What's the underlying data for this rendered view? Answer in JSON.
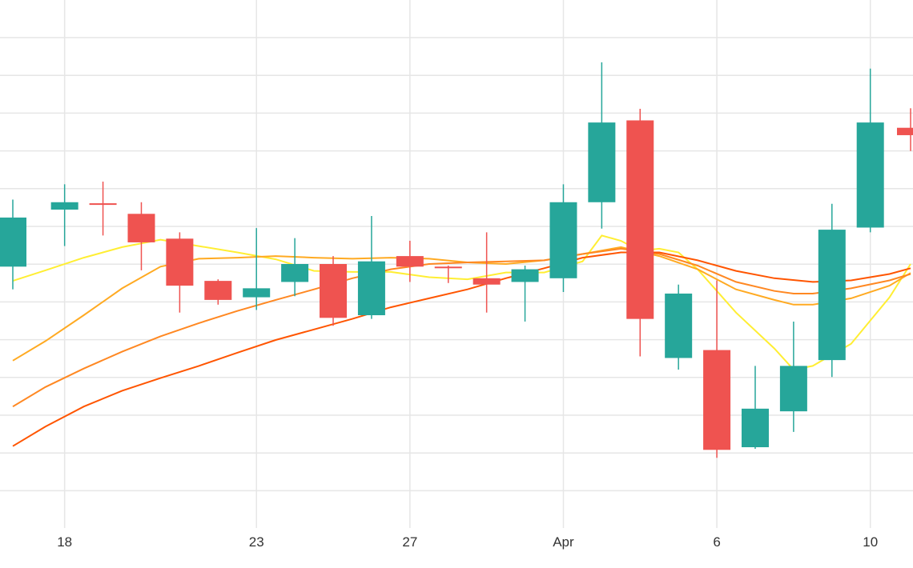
{
  "chart_data": {
    "type": "candlestick",
    "title": "",
    "xlabel": "",
    "ylabel": "",
    "ylim": [
      0,
      100
    ],
    "grid": true,
    "legend": "none",
    "x_ticks": [
      {
        "label": "18",
        "day": 18
      },
      {
        "label": "23",
        "day": 23
      },
      {
        "label": "27",
        "day": 27
      },
      {
        "label": "Apr",
        "day": 31
      },
      {
        "label": "6",
        "day": 35
      },
      {
        "label": "10",
        "day": 39
      }
    ],
    "x_range": [
      16.65,
      40.05
    ],
    "up_color": "#26a69a",
    "down_color": "#ef5350",
    "candles": [
      {
        "day": 16.65,
        "open": 49.5,
        "close": 58.8,
        "high": 62.2,
        "low": 45.2
      },
      {
        "day": 18,
        "open": 60.3,
        "close": 61.7,
        "high": 65.1,
        "low": 53.4
      },
      {
        "day": 19,
        "open": 61.5,
        "close": 61.3,
        "high": 65.6,
        "low": 55.4
      },
      {
        "day": 20,
        "open": 59.5,
        "close": 54.1,
        "high": 61.7,
        "low": 48.8
      },
      {
        "day": 21,
        "open": 54.8,
        "close": 45.9,
        "high": 56.0,
        "low": 40.8
      },
      {
        "day": 22,
        "open": 46.8,
        "close": 43.2,
        "high": 47.1,
        "low": 42.3
      },
      {
        "day": 23,
        "open": 43.7,
        "close": 45.4,
        "high": 56.8,
        "low": 41.3
      },
      {
        "day": 24,
        "open": 46.6,
        "close": 50.0,
        "high": 54.9,
        "low": 43.9
      },
      {
        "day": 25,
        "open": 50.0,
        "close": 39.8,
        "high": 51.5,
        "low": 38.3
      },
      {
        "day": 26,
        "open": 40.3,
        "close": 50.5,
        "high": 59.1,
        "low": 39.6
      },
      {
        "day": 27,
        "open": 51.5,
        "close": 49.5,
        "high": 54.4,
        "low": 46.6
      },
      {
        "day": 28,
        "open": 49.5,
        "close": 49.2,
        "high": 49.7,
        "low": 46.4
      },
      {
        "day": 29,
        "open": 47.3,
        "close": 46.1,
        "high": 56.0,
        "low": 40.8
      },
      {
        "day": 30,
        "open": 46.6,
        "close": 49.0,
        "high": 49.7,
        "low": 39.1
      },
      {
        "day": 31,
        "open": 47.3,
        "close": 61.7,
        "high": 65.1,
        "low": 44.7
      },
      {
        "day": 32,
        "open": 61.7,
        "close": 76.8,
        "high": 88.2,
        "low": 56.7
      },
      {
        "day": 33,
        "open": 77.2,
        "close": 39.6,
        "high": 79.4,
        "low": 32.5
      },
      {
        "day": 34,
        "open": 32.2,
        "close": 44.4,
        "high": 46.1,
        "low": 30.0
      },
      {
        "day": 35,
        "open": 33.7,
        "close": 14.8,
        "high": 46.9,
        "low": 13.3
      },
      {
        "day": 36,
        "open": 15.3,
        "close": 22.6,
        "high": 30.7,
        "low": 15.0
      },
      {
        "day": 37,
        "open": 22.1,
        "close": 30.7,
        "high": 39.1,
        "low": 18.2
      },
      {
        "day": 38,
        "open": 31.8,
        "close": 56.5,
        "high": 61.4,
        "low": 28.6
      },
      {
        "day": 39,
        "open": 56.9,
        "close": 76.8,
        "high": 87.0,
        "low": 56.0
      },
      {
        "day": 40.05,
        "open": 75.8,
        "close": 74.4,
        "high": 79.5,
        "low": 71.4
      }
    ],
    "series": [
      {
        "color": "#ffee33",
        "type": "line",
        "points": [
          [
            16.65,
            46.8
          ],
          [
            17.5,
            48.8
          ],
          [
            18.5,
            51.2
          ],
          [
            19.5,
            53.2
          ],
          [
            20.5,
            54.6
          ],
          [
            21.5,
            53.4
          ],
          [
            22.5,
            52.2
          ],
          [
            23.5,
            50.9
          ],
          [
            24.5,
            48.7
          ],
          [
            25.5,
            48.5
          ],
          [
            26.5,
            48.5
          ],
          [
            27.5,
            47.5
          ],
          [
            28.5,
            47.1
          ],
          [
            29.5,
            48.4
          ],
          [
            30.5,
            48.4
          ],
          [
            31.5,
            50.5
          ],
          [
            32,
            55.4
          ],
          [
            32.5,
            54.4
          ],
          [
            33,
            52.5
          ],
          [
            33.5,
            52.9
          ],
          [
            34,
            52.2
          ],
          [
            34.5,
            49.0
          ],
          [
            35.5,
            40.8
          ],
          [
            36.5,
            34.0
          ],
          [
            37,
            30.0
          ],
          [
            37.5,
            30.7
          ],
          [
            38.5,
            34.9
          ],
          [
            39.5,
            43.7
          ],
          [
            40.05,
            50.0
          ]
        ]
      },
      {
        "color": "#ffaa22",
        "type": "line",
        "points": [
          [
            16.65,
            31.7
          ],
          [
            17.5,
            35.4
          ],
          [
            18.5,
            40.3
          ],
          [
            19.5,
            45.4
          ],
          [
            20.5,
            49.5
          ],
          [
            21.5,
            51.0
          ],
          [
            22.5,
            51.2
          ],
          [
            23.5,
            51.5
          ],
          [
            24.5,
            51.2
          ],
          [
            25.5,
            51.0
          ],
          [
            26.5,
            51.2
          ],
          [
            27.5,
            51.0
          ],
          [
            28.5,
            50.3
          ],
          [
            29.5,
            50.0
          ],
          [
            30.5,
            50.7
          ],
          [
            31.5,
            51.9
          ],
          [
            32.5,
            53.2
          ],
          [
            33.5,
            51.5
          ],
          [
            34.5,
            49.0
          ],
          [
            35.5,
            45.2
          ],
          [
            36.5,
            43.2
          ],
          [
            37,
            42.3
          ],
          [
            37.5,
            42.3
          ],
          [
            38.5,
            43.5
          ],
          [
            39.5,
            45.9
          ],
          [
            40.05,
            48.3
          ]
        ]
      },
      {
        "color": "#ff8822",
        "type": "line",
        "points": [
          [
            16.65,
            23.0
          ],
          [
            17.5,
            26.7
          ],
          [
            18.5,
            30.2
          ],
          [
            19.5,
            33.4
          ],
          [
            20.5,
            36.3
          ],
          [
            21.5,
            38.8
          ],
          [
            22.5,
            41.1
          ],
          [
            23.5,
            43.2
          ],
          [
            24.5,
            45.2
          ],
          [
            25.5,
            47.3
          ],
          [
            26.5,
            49.0
          ],
          [
            27.5,
            50.0
          ],
          [
            28.5,
            50.3
          ],
          [
            29.5,
            50.5
          ],
          [
            30.5,
            50.7
          ],
          [
            31.5,
            51.9
          ],
          [
            32.5,
            52.9
          ],
          [
            33.5,
            51.9
          ],
          [
            34.5,
            49.7
          ],
          [
            35.5,
            46.6
          ],
          [
            36.5,
            44.9
          ],
          [
            37,
            44.4
          ],
          [
            37.5,
            44.4
          ],
          [
            38.5,
            45.4
          ],
          [
            39.5,
            46.9
          ],
          [
            40.05,
            48.1
          ]
        ]
      },
      {
        "color": "#ff5500",
        "type": "line",
        "points": [
          [
            16.65,
            15.5
          ],
          [
            17.5,
            19.2
          ],
          [
            18.5,
            23.0
          ],
          [
            19.5,
            26.0
          ],
          [
            20.5,
            28.4
          ],
          [
            21.5,
            30.7
          ],
          [
            22.5,
            33.2
          ],
          [
            23.5,
            35.6
          ],
          [
            24.5,
            37.6
          ],
          [
            25.5,
            39.6
          ],
          [
            26.5,
            41.8
          ],
          [
            27.5,
            43.5
          ],
          [
            28.5,
            45.2
          ],
          [
            29.5,
            47.3
          ],
          [
            30.5,
            49.2
          ],
          [
            31.5,
            51.2
          ],
          [
            32.5,
            52.2
          ],
          [
            33.5,
            52.2
          ],
          [
            34.5,
            50.7
          ],
          [
            35.5,
            48.7
          ],
          [
            36.5,
            47.3
          ],
          [
            37.5,
            46.6
          ],
          [
            38.5,
            46.9
          ],
          [
            39.5,
            48.1
          ],
          [
            40.05,
            49.2
          ]
        ]
      }
    ]
  }
}
